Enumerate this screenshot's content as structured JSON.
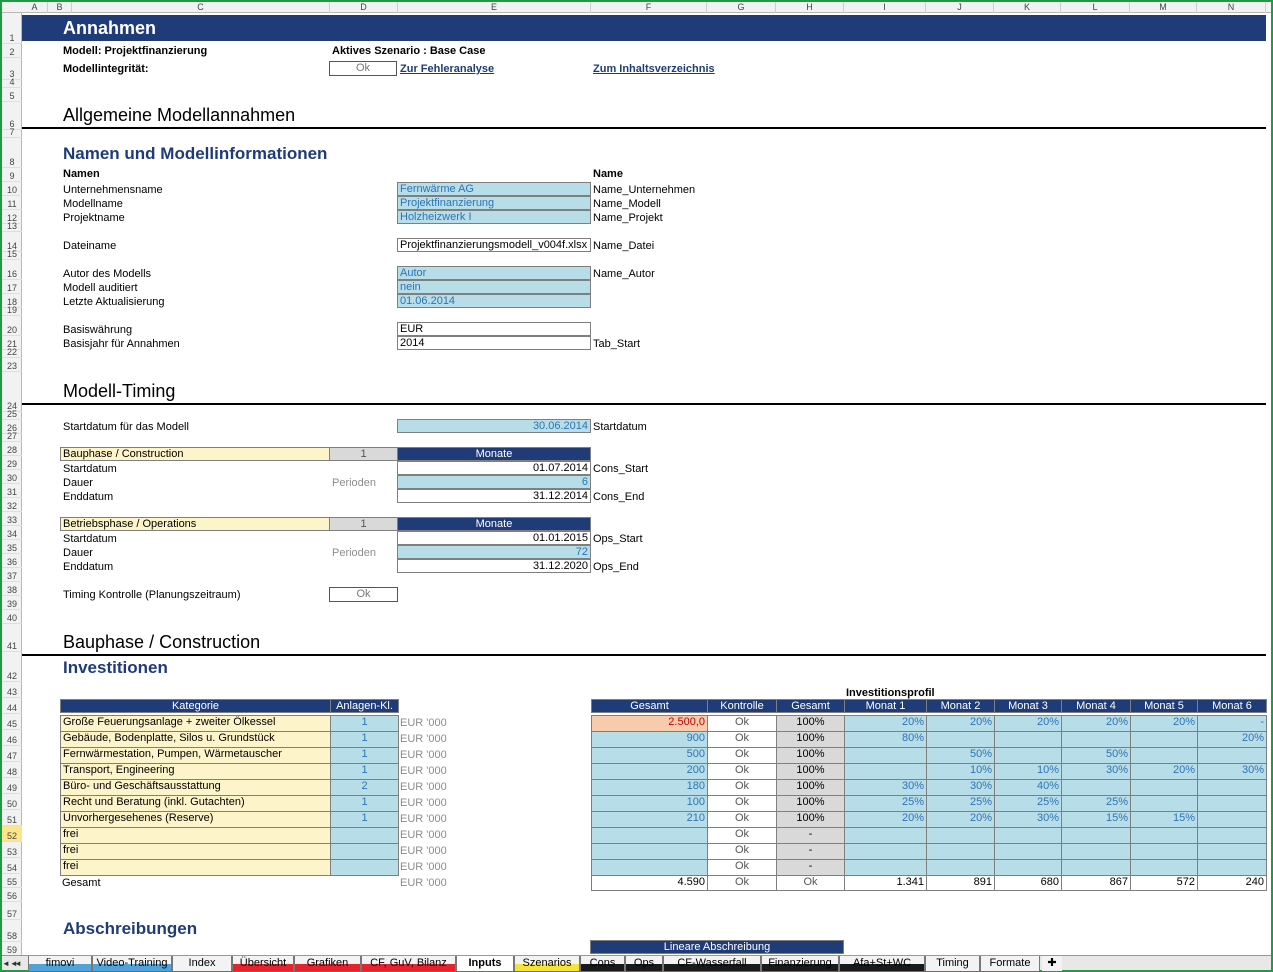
{
  "columns": [
    "A",
    "B",
    "C",
    "D",
    "E",
    "F",
    "G",
    "H",
    "I",
    "J",
    "K",
    "L",
    "M",
    "N"
  ],
  "rows": [
    "1",
    "2",
    "3",
    "4",
    "5",
    "6",
    "7",
    "8",
    "9",
    "10",
    "11",
    "12",
    "13",
    "14",
    "15",
    "16",
    "17",
    "18",
    "19",
    "20",
    "21",
    "22",
    "23",
    "24",
    "25",
    "26",
    "27",
    "28",
    "29",
    "30",
    "31",
    "32",
    "33",
    "34",
    "35",
    "36",
    "37",
    "38",
    "39",
    "40",
    "41",
    "42",
    "43",
    "44",
    "45",
    "46",
    "47",
    "48",
    "49",
    "50",
    "51",
    "52",
    "53",
    "54",
    "55",
    "56",
    "57",
    "58",
    "59"
  ],
  "header": {
    "title": "Annahmen",
    "model_label": "Modell: Projektfinanzierung",
    "scenario_label": "Aktives Szenario : Base Case",
    "integrity_label": "Modellintegrität:",
    "integrity_status": "Ok",
    "link_errors": "Zur Fehleranalyse",
    "link_toc": "Zum Inhaltsverzeichnis"
  },
  "general": {
    "title": "Allgemeine Modellannahmen",
    "subtitle": "Namen und Modellinformationen",
    "col_names": "Namen",
    "col_name": "Name",
    "fields": [
      {
        "label": "Unternehmensname",
        "value": "Fernwärme AG",
        "name": "Name_Unternehmen"
      },
      {
        "label": "Modellname",
        "value": "Projektfinanzierung",
        "name": "Name_Modell"
      },
      {
        "label": "Projektname",
        "value": "Holzheizwerk I",
        "name": "Name_Projekt"
      },
      {
        "label": "Dateiname",
        "value": "Projektfinanzierungsmodell_v004f.xlsx",
        "name": "Name_Datei"
      },
      {
        "label": "Autor des Modells",
        "value": "Autor",
        "name": "Name_Autor"
      },
      {
        "label": "Modell auditiert",
        "value": "nein",
        "name": ""
      },
      {
        "label": "Letzte Aktualisierung",
        "value": "01.06.2014",
        "name": ""
      },
      {
        "label": "Basiswährung",
        "value": "EUR",
        "name": ""
      },
      {
        "label": "Basisjahr für Annahmen",
        "value": "2014",
        "name": "Tab_Start"
      }
    ]
  },
  "timing": {
    "title": "Modell-Timing",
    "start_label": "Startdatum für das Modell",
    "start_value": "30.06.2014",
    "start_name": "Startdatum",
    "phases": [
      {
        "title": "Bauphase / Construction",
        "flag": "1",
        "unit": "Monate",
        "start_label": "Startdatum",
        "start": "01.07.2014",
        "start_name": "Cons_Start",
        "dur_label": "Dauer",
        "dur_unit": "Perioden",
        "dur": "6",
        "end_label": "Enddatum",
        "end": "31.12.2014",
        "end_name": "Cons_End"
      },
      {
        "title": "Betriebsphase / Operations",
        "flag": "1",
        "unit": "Monate",
        "start_label": "Startdatum",
        "start": "01.01.2015",
        "start_name": "Ops_Start",
        "dur_label": "Dauer",
        "dur_unit": "Perioden",
        "dur": "72",
        "end_label": "Enddatum",
        "end": "31.12.2020",
        "end_name": "Ops_End"
      }
    ],
    "control_label": "Timing Kontrolle (Planungszeitraum)",
    "control_status": "Ok"
  },
  "construction": {
    "title": "Bauphase / Construction",
    "subtitle": "Investitionen",
    "profile_title": "Investitionsprofil",
    "headers": [
      "Kategorie",
      "Anlagen-Kl.",
      "Gesamt",
      "Kontrolle",
      "Gesamt",
      "Monat 1",
      "Monat 2",
      "Monat 3",
      "Monat 4",
      "Monat 5",
      "Monat 6"
    ],
    "unit": "EUR '000",
    "rows": [
      {
        "cat": "Große Feuerungsanlage + zweiter Ölkessel",
        "cls": "1",
        "total": "2.500,0",
        "check": "Ok",
        "sum": "100%",
        "m": [
          "20%",
          "20%",
          "20%",
          "20%",
          "20%",
          "-"
        ]
      },
      {
        "cat": "Gebäude, Bodenplatte, Silos u. Grundstück",
        "cls": "1",
        "total": "900",
        "check": "Ok",
        "sum": "100%",
        "m": [
          "80%",
          "",
          "",
          "",
          "",
          "20%"
        ]
      },
      {
        "cat": "Fernwärmestation, Pumpen, Wärmetauscher",
        "cls": "1",
        "total": "500",
        "check": "Ok",
        "sum": "100%",
        "m": [
          "",
          "50%",
          "",
          "50%",
          "",
          ""
        ]
      },
      {
        "cat": "Transport, Engineering",
        "cls": "1",
        "total": "200",
        "check": "Ok",
        "sum": "100%",
        "m": [
          "",
          "10%",
          "10%",
          "30%",
          "20%",
          "30%"
        ]
      },
      {
        "cat": "Büro- und Geschäftsausstattung",
        "cls": "2",
        "total": "180",
        "check": "Ok",
        "sum": "100%",
        "m": [
          "30%",
          "30%",
          "40%",
          "",
          "",
          ""
        ]
      },
      {
        "cat": "Recht und Beratung (inkl. Gutachten)",
        "cls": "1",
        "total": "100",
        "check": "Ok",
        "sum": "100%",
        "m": [
          "25%",
          "25%",
          "25%",
          "25%",
          "",
          ""
        ]
      },
      {
        "cat": "Unvorhergesehenes (Reserve)",
        "cls": "1",
        "total": "210",
        "check": "Ok",
        "sum": "100%",
        "m": [
          "20%",
          "20%",
          "30%",
          "15%",
          "15%",
          ""
        ]
      },
      {
        "cat": "frei",
        "cls": "",
        "total": "",
        "check": "Ok",
        "sum": "-",
        "m": [
          "",
          "",
          "",
          "",
          "",
          ""
        ]
      },
      {
        "cat": "frei",
        "cls": "",
        "total": "",
        "check": "Ok",
        "sum": "-",
        "m": [
          "",
          "",
          "",
          "",
          "",
          ""
        ]
      },
      {
        "cat": "frei",
        "cls": "",
        "total": "",
        "check": "Ok",
        "sum": "-",
        "m": [
          "",
          "",
          "",
          "",
          "",
          ""
        ]
      }
    ],
    "total_row": {
      "label": "Gesamt",
      "total": "4.590",
      "check": "Ok",
      "sum": "Ok",
      "m": [
        "1.341",
        "891",
        "680",
        "867",
        "572",
        "240"
      ]
    }
  },
  "depreciation": {
    "title": "Abschreibungen",
    "header": "Lineare Abschreibung"
  },
  "sheet_tabs": [
    {
      "label": "fimovi",
      "color": "#4fa3d9",
      "active": false
    },
    {
      "label": "Video-Training",
      "color": "#4fa3d9",
      "active": false
    },
    {
      "label": "Index",
      "color": "",
      "active": false
    },
    {
      "label": "Übersicht",
      "color": "#e3232f",
      "active": false
    },
    {
      "label": "Grafiken",
      "color": "#e3232f",
      "active": false
    },
    {
      "label": "CF, GuV, Bilanz",
      "color": "#e3232f",
      "active": false
    },
    {
      "label": "Inputs",
      "color": "",
      "active": true
    },
    {
      "label": "Szenarios",
      "color": "#f5e33a",
      "active": false
    },
    {
      "label": "Cons",
      "color": "#1a1a1a",
      "active": false
    },
    {
      "label": "Ops",
      "color": "#1a1a1a",
      "active": false
    },
    {
      "label": "CF-Wasserfall",
      "color": "#1a1a1a",
      "active": false
    },
    {
      "label": "Finanzierung",
      "color": "#1a1a1a",
      "active": false
    },
    {
      "label": "Afa+St+WC",
      "color": "#1a1a1a",
      "active": false
    },
    {
      "label": "Timing",
      "color": "",
      "active": false
    },
    {
      "label": "Formate",
      "color": "",
      "active": false
    }
  ],
  "colors": {
    "navy": "#1f3b78",
    "input_fill": "#b7dde8",
    "input_text": "#2e74b5",
    "category_fill": "#fdf5c9",
    "calc_fill": "#d9d9d9",
    "highlight": "#f8cbad",
    "frame": "#1f9a45"
  }
}
